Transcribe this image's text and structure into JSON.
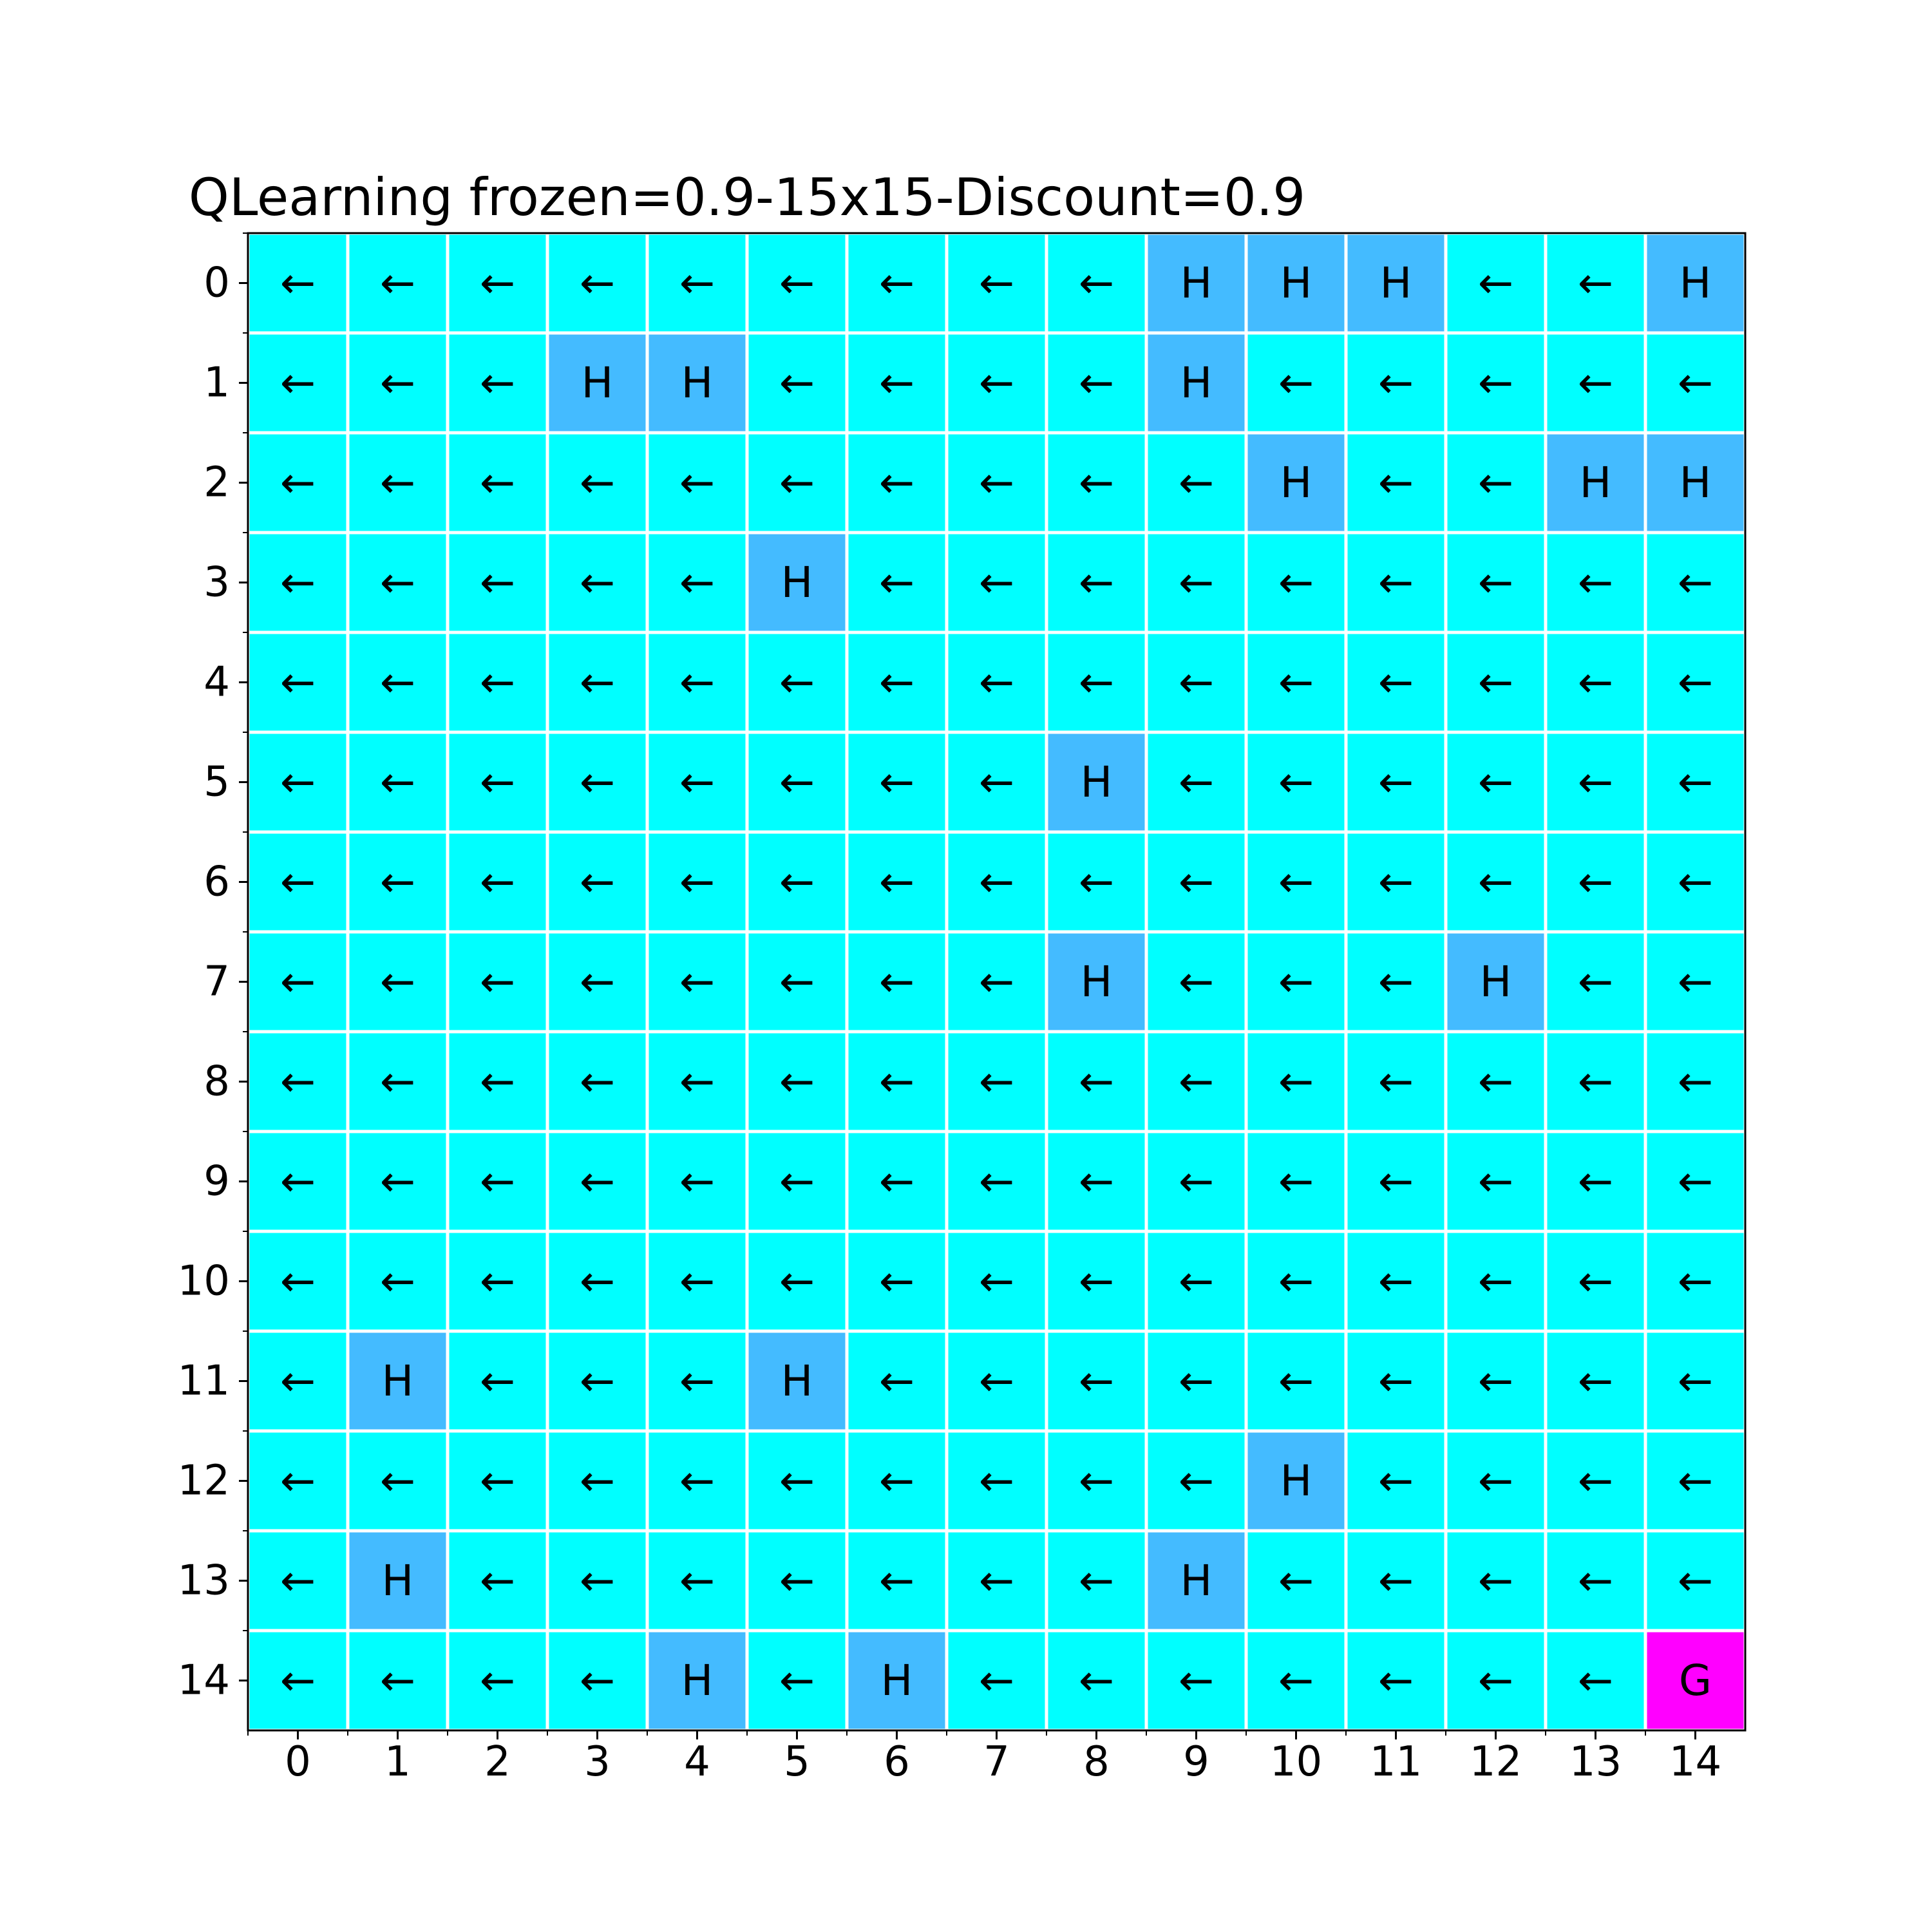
{
  "chart_data": {
    "type": "heatmap",
    "title": "QLearning frozen=0.9-15x15-Discount=0.9",
    "xlabel": "",
    "ylabel": "",
    "x_ticks": [
      "0",
      "1",
      "2",
      "3",
      "4",
      "5",
      "6",
      "7",
      "8",
      "9",
      "10",
      "11",
      "12",
      "13",
      "14"
    ],
    "y_ticks": [
      "0",
      "1",
      "2",
      "3",
      "4",
      "5",
      "6",
      "7",
      "8",
      "9",
      "10",
      "11",
      "12",
      "13",
      "14"
    ],
    "grid": [
      [
        "←",
        "←",
        "←",
        "←",
        "←",
        "←",
        "←",
        "←",
        "←",
        "H",
        "H",
        "H",
        "←",
        "←",
        "H"
      ],
      [
        "←",
        "←",
        "←",
        "H",
        "H",
        "←",
        "←",
        "←",
        "←",
        "H",
        "←",
        "←",
        "←",
        "←",
        "←"
      ],
      [
        "←",
        "←",
        "←",
        "←",
        "←",
        "←",
        "←",
        "←",
        "←",
        "←",
        "H",
        "←",
        "←",
        "H",
        "H"
      ],
      [
        "←",
        "←",
        "←",
        "←",
        "←",
        "H",
        "←",
        "←",
        "←",
        "←",
        "←",
        "←",
        "←",
        "←",
        "←"
      ],
      [
        "←",
        "←",
        "←",
        "←",
        "←",
        "←",
        "←",
        "←",
        "←",
        "←",
        "←",
        "←",
        "←",
        "←",
        "←"
      ],
      [
        "←",
        "←",
        "←",
        "←",
        "←",
        "←",
        "←",
        "←",
        "H",
        "←",
        "←",
        "←",
        "←",
        "←",
        "←"
      ],
      [
        "←",
        "←",
        "←",
        "←",
        "←",
        "←",
        "←",
        "←",
        "←",
        "←",
        "←",
        "←",
        "←",
        "←",
        "←"
      ],
      [
        "←",
        "←",
        "←",
        "←",
        "←",
        "←",
        "←",
        "←",
        "H",
        "←",
        "←",
        "←",
        "H",
        "←",
        "←"
      ],
      [
        "←",
        "←",
        "←",
        "←",
        "←",
        "←",
        "←",
        "←",
        "←",
        "←",
        "←",
        "←",
        "←",
        "←",
        "←"
      ],
      [
        "←",
        "←",
        "←",
        "←",
        "←",
        "←",
        "←",
        "←",
        "←",
        "←",
        "←",
        "←",
        "←",
        "←",
        "←"
      ],
      [
        "←",
        "←",
        "←",
        "←",
        "←",
        "←",
        "←",
        "←",
        "←",
        "←",
        "←",
        "←",
        "←",
        "←",
        "←"
      ],
      [
        "←",
        "H",
        "←",
        "←",
        "←",
        "H",
        "←",
        "←",
        "←",
        "←",
        "←",
        "←",
        "←",
        "←",
        "←"
      ],
      [
        "←",
        "←",
        "←",
        "←",
        "←",
        "←",
        "←",
        "←",
        "←",
        "←",
        "H",
        "←",
        "←",
        "←",
        "←"
      ],
      [
        "←",
        "H",
        "←",
        "←",
        "←",
        "←",
        "←",
        "←",
        "←",
        "H",
        "←",
        "←",
        "←",
        "←",
        "←"
      ],
      [
        "←",
        "←",
        "←",
        "←",
        "H",
        "←",
        "H",
        "←",
        "←",
        "←",
        "←",
        "←",
        "←",
        "←",
        "G"
      ]
    ],
    "colors": {
      "frozen": "#00ffff",
      "hole": "#44bbff",
      "goal": "#ff00ff",
      "cell_border": "#ffffff",
      "axis": "#000000"
    },
    "grid_lines": false,
    "legend": "none"
  }
}
